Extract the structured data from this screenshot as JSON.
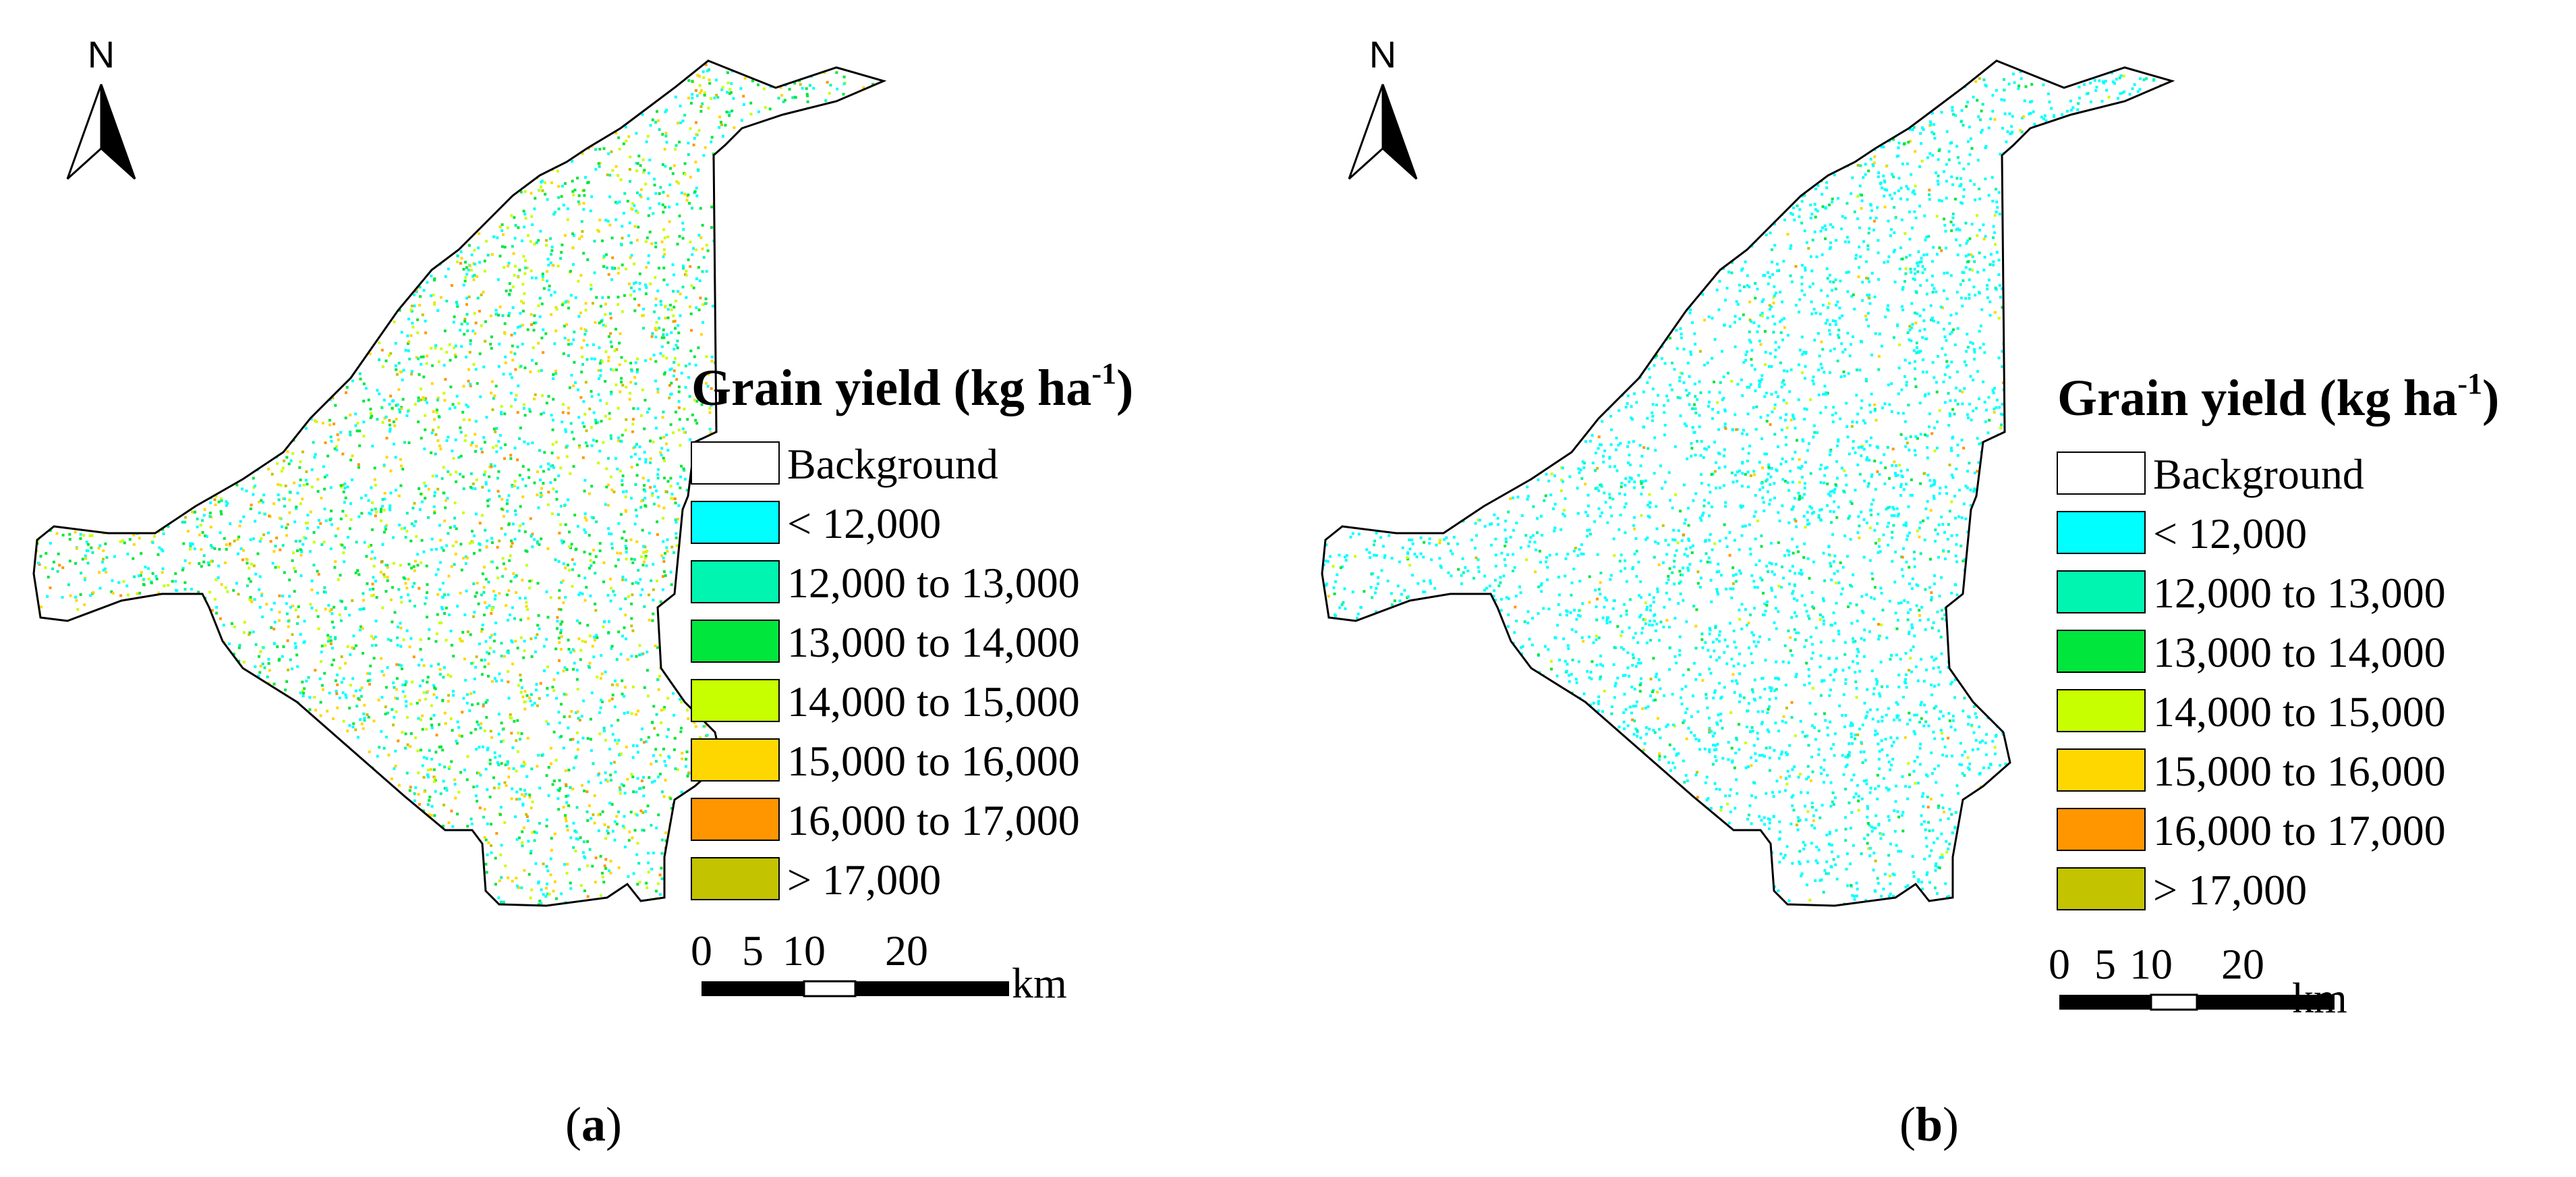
{
  "north_label": "N",
  "legend": {
    "title_main": "Grain yield (kg ha",
    "title_sup": "-1",
    "title_close": ")",
    "items": [
      {
        "label": "Background",
        "color": "#ffffff"
      },
      {
        "label": "< 12,000",
        "color": "#00ffff"
      },
      {
        "label": "12,000 to 13,000",
        "color": "#00f5b0"
      },
      {
        "label": "13,000 to 14,000",
        "color": "#00e63c"
      },
      {
        "label": "14,000 to 15,000",
        "color": "#c8ff00"
      },
      {
        "label": "15,000 to 16,000",
        "color": "#ffd700"
      },
      {
        "label": "16,000 to 17,000",
        "color": "#ff9600"
      },
      {
        "label": "> 17,000",
        "color": "#c3c300"
      }
    ]
  },
  "scale_bar": {
    "ticks": [
      "0",
      "5",
      "10",
      "20"
    ],
    "tick_km": [
      0,
      5,
      10,
      20
    ],
    "unit": "km"
  },
  "panels": [
    {
      "caption_open": "(",
      "caption_letter": "a",
      "caption_close": ")",
      "class_shares": {
        "< 12,000": 0.3,
        "12,000 to 13,000": 0.1,
        "13,000 to 14,000": 0.25,
        "14,000 to 15,000": 0.12,
        "15,000 to 16,000": 0.16,
        "16,000 to 17,000": 0.04,
        "> 17,000": 0.03
      }
    },
    {
      "caption_open": "(",
      "caption_letter": "b",
      "caption_close": ")",
      "class_shares": {
        "< 12,000": 0.8,
        "12,000 to 13,000": 0.09,
        "13,000 to 14,000": 0.04,
        "14,000 to 15,000": 0.03,
        "15,000 to 16,000": 0.02,
        "16,000 to 17,000": 0.01,
        "> 17,000": 0.01
      }
    }
  ]
}
